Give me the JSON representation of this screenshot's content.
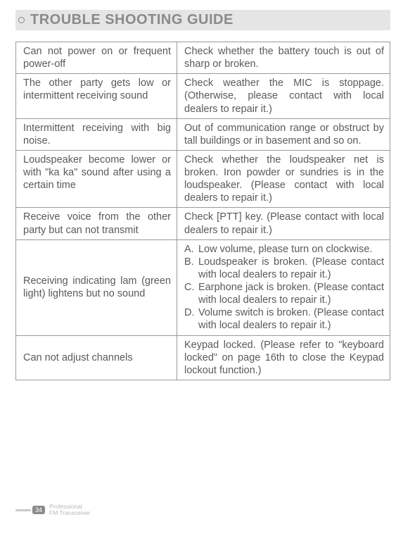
{
  "title": "TROUBLE SHOOTING GUIDE",
  "rows": [
    {
      "problem": "Can not power on or frequent power-off",
      "solution_plain": "Check whether the battery touch is out of sharp or broken."
    },
    {
      "problem": "The other party gets low or intermittent  receiving sound",
      "solution_plain": "Check weather the MIC is stoppage. (Otherwise, please contact with local dealers to repair it.)"
    },
    {
      "problem": "Intermittent receiving with big noise.",
      "solution_plain": "Out of communication range or obstruct by tall buildings or in basement and so on."
    },
    {
      "problem": "Loudspeaker become lower or with \"ka ka\" sound after using a certain time",
      "solution_plain": "Check whether the loudspeaker net is broken. Iron powder or sundries is in the loudspeaker. (Please contact with local dealers to repair it.)"
    },
    {
      "problem": "Receive voice from the other party but can not transmit",
      "solution_plain": "Check [PTT] key. (Please contact with local dealers to repair it.)"
    },
    {
      "problem": "Receiving indicating lam (green light) lightens but no sound",
      "solution_list": [
        {
          "label": "A.",
          "text": "Low volume, please turn on clockwise."
        },
        {
          "label": "B.",
          "text": "Loudspeaker is broken. (Please contact with local dealers to repair it.)"
        },
        {
          "label": "C.",
          "text": "Earphone jack is broken. (Please contact with local dealers to repair it.)"
        },
        {
          "label": "D.",
          "text": "Volume switch is broken. (Please contact with local dealers to repair it.)"
        }
      ]
    },
    {
      "problem": "Can not adjust channels",
      "solution_plain": "Keypad locked. (Please refer to \"keyboard locked\" on page 16th to close the Keypad lockout function.)"
    }
  ],
  "footer": {
    "page": "34",
    "line1": "Professional",
    "line2": "FM Transceiver"
  },
  "colors": {
    "title_bg": "#e5e5e5",
    "title_fg": "#8a8a8a",
    "cell_border": "#9a9a9a",
    "cell_text": "#5a5a5a"
  }
}
